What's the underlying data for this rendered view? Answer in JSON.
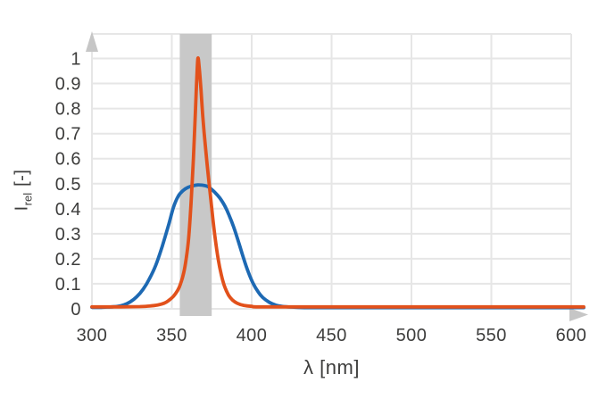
{
  "figure": {
    "background": "#ffffff",
    "text_color": "#3d3d3c"
  },
  "chart_data": {
    "type": "line",
    "title": "",
    "xlabel": "λ [nm]",
    "ylabel": "I_rel [-]",
    "ylabel_parts": {
      "main": "I",
      "sub": "rel",
      "unit": "[-]"
    },
    "xlim": [
      300,
      600
    ],
    "ylim": [
      0,
      1.1
    ],
    "grid": true,
    "grid_color": "#e6e6e6",
    "legend_position": "none",
    "axis_arrow_color": "#c6c6c6",
    "x_ticks": {
      "values": [
        300,
        350,
        400,
        450,
        500,
        550,
        600
      ],
      "labels": [
        "300",
        "350",
        "400",
        "450",
        "500",
        "550",
        "600"
      ]
    },
    "y_ticks": {
      "values": [
        0,
        0.1,
        0.2,
        0.3,
        0.4,
        0.5,
        0.6,
        0.7,
        0.8,
        0.9,
        1
      ],
      "labels": [
        "0",
        "0.1",
        "0.2",
        "0.3",
        "0.4",
        "0.5",
        "0.6",
        "0.7",
        "0.8",
        "0.9",
        "1"
      ]
    },
    "highlight_band": {
      "x_start": 355,
      "x_end": 375,
      "color": "#c8c8c8"
    },
    "series": [
      {
        "name": "blue broad spectrum curve",
        "color": "#1d69b3",
        "peak": {
          "x": 366,
          "y": 0.5
        },
        "points": [
          [
            300,
            0.006
          ],
          [
            306,
            0.006
          ],
          [
            312,
            0.008
          ],
          [
            316,
            0.01
          ],
          [
            320,
            0.016
          ],
          [
            324,
            0.028
          ],
          [
            328,
            0.048
          ],
          [
            332,
            0.078
          ],
          [
            336,
            0.12
          ],
          [
            340,
            0.175
          ],
          [
            344,
            0.25
          ],
          [
            348,
            0.335
          ],
          [
            351,
            0.405
          ],
          [
            354,
            0.45
          ],
          [
            357,
            0.472
          ],
          [
            360,
            0.485
          ],
          [
            363,
            0.491
          ],
          [
            366,
            0.495
          ],
          [
            369,
            0.494
          ],
          [
            372,
            0.49
          ],
          [
            374,
            0.482
          ],
          [
            377,
            0.465
          ],
          [
            380,
            0.443
          ],
          [
            383,
            0.413
          ],
          [
            386,
            0.372
          ],
          [
            389,
            0.322
          ],
          [
            392,
            0.262
          ],
          [
            395,
            0.2
          ],
          [
            398,
            0.145
          ],
          [
            401,
            0.1
          ],
          [
            404,
            0.068
          ],
          [
            407,
            0.045
          ],
          [
            411,
            0.026
          ],
          [
            415,
            0.015
          ],
          [
            419,
            0.01
          ],
          [
            425,
            0.007
          ],
          [
            433,
            0.005
          ],
          [
            450,
            0.005
          ],
          [
            500,
            0.005
          ],
          [
            550,
            0.005
          ],
          [
            600,
            0.005
          ]
        ]
      },
      {
        "name": "orange narrow peak curve",
        "color": "#e2511b",
        "peak": {
          "x": 366,
          "y": 1.0
        },
        "points": [
          [
            300,
            0.008
          ],
          [
            318,
            0.008
          ],
          [
            330,
            0.009
          ],
          [
            336,
            0.011
          ],
          [
            341,
            0.015
          ],
          [
            345,
            0.022
          ],
          [
            348,
            0.033
          ],
          [
            351,
            0.05
          ],
          [
            353.5,
            0.072
          ],
          [
            355.5,
            0.1
          ],
          [
            357.5,
            0.145
          ],
          [
            359,
            0.2
          ],
          [
            360.5,
            0.28
          ],
          [
            362,
            0.42
          ],
          [
            363.5,
            0.6
          ],
          [
            364.5,
            0.75
          ],
          [
            365.5,
            0.9
          ],
          [
            366.3,
            1.0
          ],
          [
            367.2,
            0.96
          ],
          [
            368.3,
            0.87
          ],
          [
            369.5,
            0.76
          ],
          [
            371,
            0.65
          ],
          [
            373,
            0.52
          ],
          [
            375,
            0.4
          ],
          [
            377,
            0.29
          ],
          [
            379,
            0.2
          ],
          [
            381,
            0.135
          ],
          [
            383,
            0.09
          ],
          [
            385.5,
            0.055
          ],
          [
            388,
            0.035
          ],
          [
            391,
            0.022
          ],
          [
            395,
            0.014
          ],
          [
            400,
            0.01
          ],
          [
            406,
            0.008
          ],
          [
            450,
            0.008
          ],
          [
            500,
            0.008
          ],
          [
            550,
            0.008
          ],
          [
            600,
            0.008
          ]
        ]
      }
    ]
  }
}
